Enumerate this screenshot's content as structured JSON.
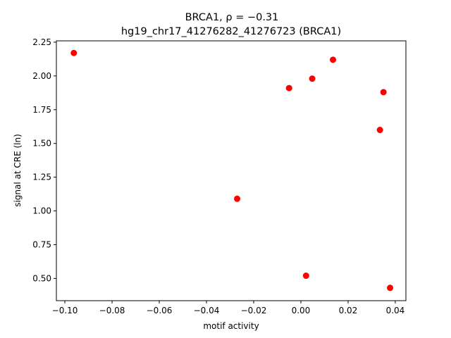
{
  "chart_data": {
    "type": "scatter",
    "title_line1": "BRCA1, ρ = −0.31",
    "title_line2": "hg19_chr17_41276282_41276723 (BRCA1)",
    "xlabel": "motif activity",
    "ylabel": "signal at CRE (ln)",
    "xlim": [
      -0.1036,
      0.0445
    ],
    "ylim": [
      0.335,
      2.26
    ],
    "x_ticks": [
      -0.1,
      -0.08,
      -0.06,
      -0.04,
      -0.02,
      0.0,
      0.02,
      0.04
    ],
    "x_tick_labels": [
      "−0.10",
      "−0.08",
      "−0.06",
      "−0.04",
      "−0.02",
      "0.00",
      "0.02",
      "0.04"
    ],
    "y_ticks": [
      0.5,
      0.75,
      1.0,
      1.25,
      1.5,
      1.75,
      2.0,
      2.25
    ],
    "y_tick_labels": [
      "0.50",
      "0.75",
      "1.00",
      "1.25",
      "1.50",
      "1.75",
      "2.00",
      "2.25"
    ],
    "marker_color": "#ff0000",
    "grid": false,
    "points": [
      {
        "x": -0.0962,
        "y": 2.17
      },
      {
        "x": -0.027,
        "y": 1.09
      },
      {
        "x": -0.005,
        "y": 1.91
      },
      {
        "x": 0.0022,
        "y": 0.52
      },
      {
        "x": 0.0048,
        "y": 1.98
      },
      {
        "x": 0.0136,
        "y": 2.12
      },
      {
        "x": 0.0335,
        "y": 1.6
      },
      {
        "x": 0.035,
        "y": 1.88
      },
      {
        "x": 0.0378,
        "y": 0.43
      }
    ]
  }
}
